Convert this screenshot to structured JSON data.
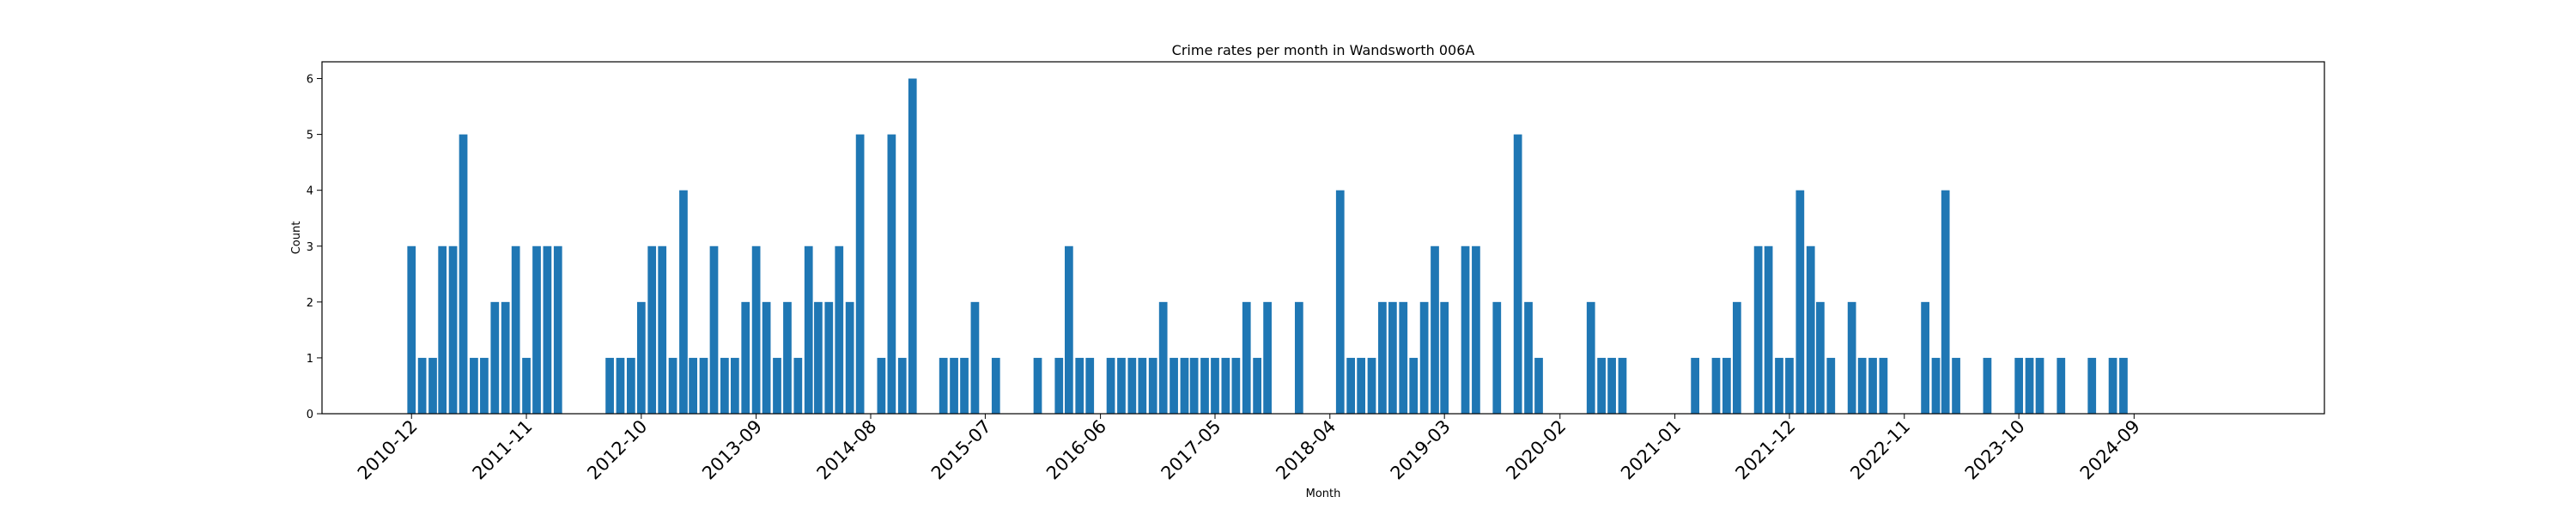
{
  "chart_data": {
    "type": "bar",
    "title": "Crime rates per month in Wandsworth 006A",
    "xlabel": "Month",
    "ylabel": "Count",
    "color": "#1f77b4",
    "ylim": [
      0,
      6.3
    ],
    "yticks": [
      0,
      1,
      2,
      3,
      4,
      5,
      6
    ],
    "x_domain": [
      "2010-03-15",
      "2026-03-10"
    ],
    "xtick_labels": [
      "2010-12",
      "2011-11",
      "2012-10",
      "2013-09",
      "2014-08",
      "2015-07",
      "2016-06",
      "2017-05",
      "2018-04",
      "2019-03",
      "2020-02",
      "2021-01",
      "2021-12",
      "2022-11",
      "2023-10",
      "2024-09"
    ],
    "grid": false,
    "legend": "none",
    "x": [
      "2010-12",
      "2011-01",
      "2011-02",
      "2011-03",
      "2011-04",
      "2011-05",
      "2011-06",
      "2011-07",
      "2011-08",
      "2011-09",
      "2011-10",
      "2011-11",
      "2011-12",
      "2012-01",
      "2012-02",
      "2012-07",
      "2012-08",
      "2012-09",
      "2012-10",
      "2012-11",
      "2012-12",
      "2013-01",
      "2013-02",
      "2013-03",
      "2013-04",
      "2013-05",
      "2013-06",
      "2013-07",
      "2013-08",
      "2013-09",
      "2013-10",
      "2013-11",
      "2013-12",
      "2014-01",
      "2014-02",
      "2014-03",
      "2014-04",
      "2014-05",
      "2014-06",
      "2014-07",
      "2014-09",
      "2014-10",
      "2014-11",
      "2014-12",
      "2015-03",
      "2015-04",
      "2015-05",
      "2015-06",
      "2015-08",
      "2015-12",
      "2016-02",
      "2016-03",
      "2016-04",
      "2016-05",
      "2016-07",
      "2016-08",
      "2016-09",
      "2016-10",
      "2016-11",
      "2016-12",
      "2017-01",
      "2017-02",
      "2017-03",
      "2017-04",
      "2017-05",
      "2017-06",
      "2017-07",
      "2017-08",
      "2017-09",
      "2017-10",
      "2018-01",
      "2018-05",
      "2018-06",
      "2018-07",
      "2018-08",
      "2018-09",
      "2018-10",
      "2018-11",
      "2018-12",
      "2019-01",
      "2019-02",
      "2019-03",
      "2019-05",
      "2019-06",
      "2019-08",
      "2019-10",
      "2019-11",
      "2019-12",
      "2020-05",
      "2020-06",
      "2020-07",
      "2020-08",
      "2021-03",
      "2021-05",
      "2021-06",
      "2021-07",
      "2021-09",
      "2021-10",
      "2021-11",
      "2021-12",
      "2022-01",
      "2022-02",
      "2022-03",
      "2022-04",
      "2022-06",
      "2022-07",
      "2022-08",
      "2022-09",
      "2023-01",
      "2023-02",
      "2023-03",
      "2023-04",
      "2023-07",
      "2023-10",
      "2023-11",
      "2023-12",
      "2024-02",
      "2024-05",
      "2024-07",
      "2024-08"
    ],
    "values": [
      3,
      1,
      1,
      3,
      3,
      5,
      1,
      1,
      2,
      2,
      3,
      1,
      3,
      3,
      3,
      1,
      1,
      1,
      2,
      3,
      3,
      1,
      4,
      1,
      1,
      3,
      1,
      1,
      2,
      3,
      2,
      1,
      2,
      1,
      3,
      2,
      2,
      3,
      2,
      5,
      1,
      5,
      1,
      6,
      1,
      1,
      1,
      2,
      1,
      1,
      1,
      3,
      1,
      1,
      1,
      1,
      1,
      1,
      1,
      2,
      1,
      1,
      1,
      1,
      1,
      1,
      1,
      2,
      1,
      2,
      2,
      4,
      1,
      1,
      1,
      2,
      2,
      2,
      1,
      2,
      3,
      2,
      3,
      3,
      2,
      5,
      2,
      1,
      2,
      1,
      1,
      1,
      1,
      1,
      1,
      2,
      3,
      3,
      1,
      1,
      4,
      3,
      2,
      1,
      2,
      1,
      1,
      1,
      2,
      1,
      4,
      1,
      1,
      1,
      1,
      1,
      1,
      1,
      1,
      1
    ]
  }
}
